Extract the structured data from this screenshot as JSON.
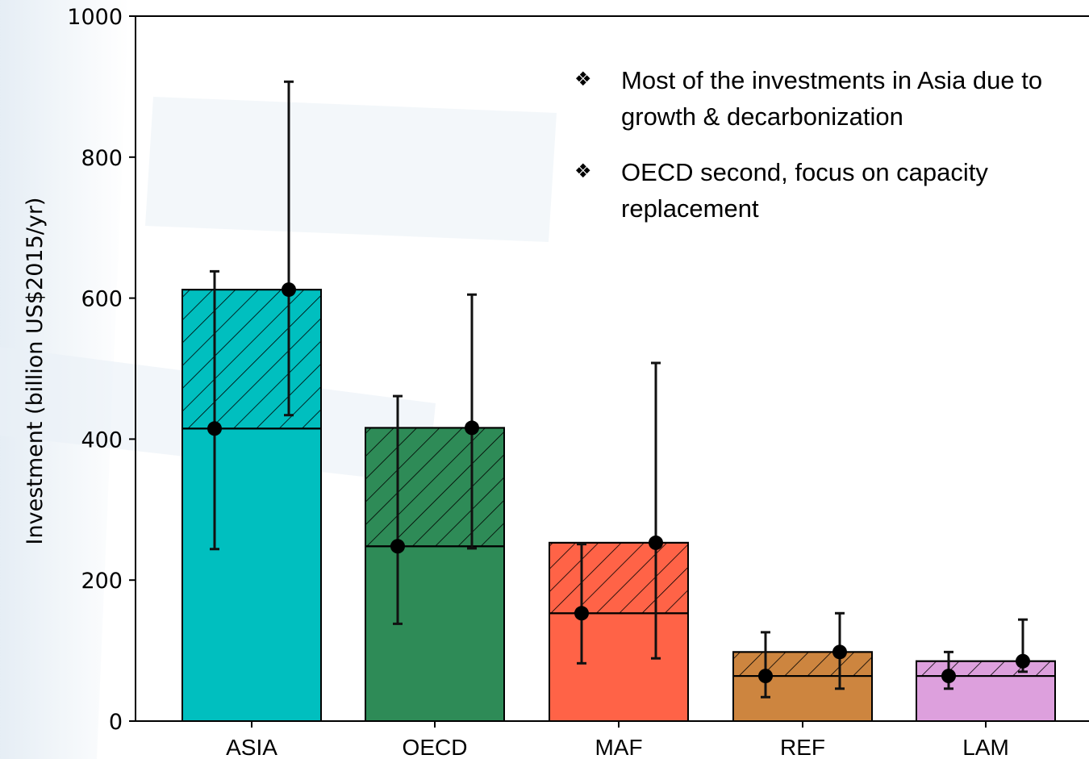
{
  "chart_data": {
    "type": "bar",
    "title": "",
    "xlabel": "",
    "ylabel": "Investment (billion US$2015/yr)",
    "ylim": [
      0,
      1000
    ],
    "yticks": [
      0,
      200,
      400,
      600,
      800,
      1000
    ],
    "categories": [
      "ASIA",
      "OECD",
      "MAF",
      "REF",
      "LAM"
    ],
    "colors": [
      "#00bfbf",
      "#2e8b57",
      "#ff6347",
      "#cd853f",
      "#dda0dd"
    ],
    "stacked": true,
    "series": [
      {
        "values": [
          415,
          248,
          153,
          64,
          64
        ],
        "hatch": false
      },
      {
        "values": [
          197,
          168,
          100,
          34,
          21
        ],
        "hatch": true
      }
    ],
    "points": [
      {
        "category": "ASIA",
        "offset": "left",
        "value": 415,
        "low": 244,
        "high": 638
      },
      {
        "category": "ASIA",
        "offset": "right",
        "value": 612,
        "low": 434,
        "high": 907
      },
      {
        "category": "OECD",
        "offset": "left",
        "value": 248,
        "low": 138,
        "high": 461
      },
      {
        "category": "OECD",
        "offset": "right",
        "value": 416,
        "low": 245,
        "high": 605
      },
      {
        "category": "MAF",
        "offset": "left",
        "value": 153,
        "low": 82,
        "high": 251
      },
      {
        "category": "MAF",
        "offset": "right",
        "value": 253,
        "low": 89,
        "high": 508
      },
      {
        "category": "REF",
        "offset": "left",
        "value": 64,
        "low": 34,
        "high": 126
      },
      {
        "category": "REF",
        "offset": "right",
        "value": 98,
        "low": 46,
        "high": 153
      },
      {
        "category": "LAM",
        "offset": "left",
        "value": 64,
        "low": 46,
        "high": 98
      },
      {
        "category": "LAM",
        "offset": "right",
        "value": 85,
        "low": 70,
        "high": 144
      }
    ],
    "grid": false,
    "annotations": [
      "Most of the investments in Asia due to growth & decarbonization",
      "OECD second, focus on capacity replacement"
    ]
  },
  "annotation_bullet": "❖"
}
